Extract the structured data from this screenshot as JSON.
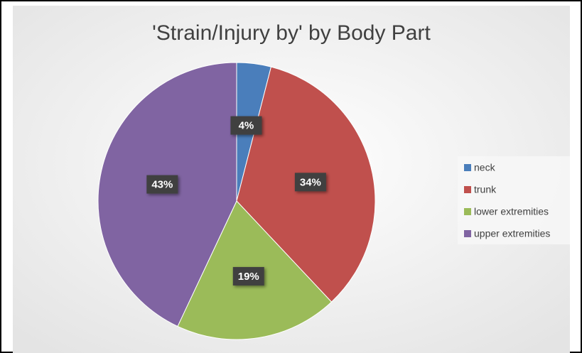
{
  "chart_data": {
    "type": "pie",
    "title": "'Strain/Injury by' by Body Part",
    "categories": [
      "neck",
      "trunk",
      "lower extremities",
      "upper extremities"
    ],
    "values": [
      4,
      34,
      19,
      43
    ],
    "value_labels": [
      "4%",
      "34%",
      "19%",
      "43%"
    ],
    "colors": [
      "#4a7ebb",
      "#c0504d",
      "#9bbb59",
      "#8064a2"
    ],
    "legend": "right"
  }
}
